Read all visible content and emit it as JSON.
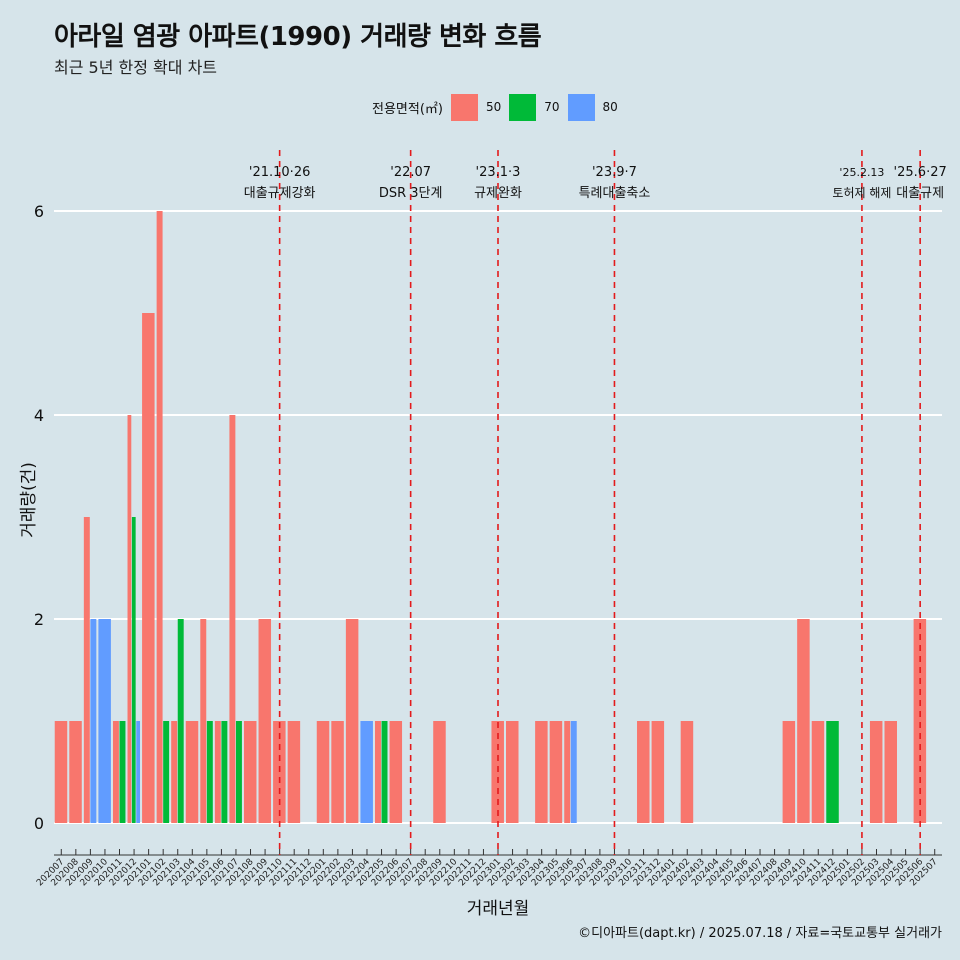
{
  "title": "아라일 염광 아파트(1990) 거래량 변화 흐름",
  "subtitle": "최근 5년 한정 확대 차트",
  "caption": "©디아파트(dapt.kr) / 2025.07.18 / 자료=국토교통부 실거래가",
  "legend": {
    "title": "전용면적(㎡)",
    "items": [
      {
        "label": "50",
        "color": "#f8766d"
      },
      {
        "label": "70",
        "color": "#00ba38"
      },
      {
        "label": "80",
        "color": "#619cff"
      }
    ]
  },
  "chart_data": {
    "type": "bar",
    "xlabel": "거래년월",
    "ylabel": "거래량(건)",
    "ylim": [
      0,
      6
    ],
    "yticks": [
      0,
      2,
      4,
      6
    ],
    "grid": "horizontal",
    "categories": [
      "202007",
      "202008",
      "202009",
      "202010",
      "202011",
      "202012",
      "202101",
      "202102",
      "202103",
      "202104",
      "202105",
      "202106",
      "202107",
      "202108",
      "202109",
      "202110",
      "202111",
      "202112",
      "202201",
      "202202",
      "202203",
      "202204",
      "202205",
      "202206",
      "202207",
      "202208",
      "202209",
      "202210",
      "202211",
      "202212",
      "202301",
      "202302",
      "202303",
      "202304",
      "202305",
      "202306",
      "202307",
      "202308",
      "202309",
      "202310",
      "202311",
      "202312",
      "202401",
      "202402",
      "202403",
      "202404",
      "202405",
      "202406",
      "202407",
      "202408",
      "202409",
      "202410",
      "202411",
      "202412",
      "202501",
      "202502",
      "202503",
      "202504",
      "202505",
      "202506",
      "202507"
    ],
    "series": [
      {
        "name": "50",
        "color": "#f8766d",
        "values": [
          1,
          1,
          3,
          0,
          1,
          4,
          5,
          6,
          1,
          1,
          2,
          1,
          4,
          1,
          2,
          1,
          1,
          0,
          1,
          1,
          2,
          0,
          1,
          1,
          0,
          0,
          1,
          0,
          0,
          0,
          1,
          1,
          0,
          1,
          1,
          1,
          0,
          0,
          0,
          0,
          1,
          1,
          0,
          1,
          0,
          0,
          0,
          0,
          0,
          0,
          1,
          2,
          1,
          0,
          0,
          0,
          1,
          1,
          0,
          2,
          0
        ]
      },
      {
        "name": "70",
        "color": "#00ba38",
        "values": [
          0,
          0,
          0,
          0,
          1,
          3,
          0,
          1,
          2,
          0,
          1,
          1,
          1,
          0,
          0,
          0,
          0,
          0,
          0,
          0,
          0,
          0,
          1,
          0,
          0,
          0,
          0,
          0,
          0,
          0,
          0,
          0,
          0,
          0,
          0,
          0,
          0,
          0,
          0,
          0,
          0,
          0,
          0,
          0,
          0,
          0,
          0,
          0,
          0,
          0,
          0,
          0,
          0,
          1,
          0,
          0,
          0,
          0,
          0,
          0,
          0
        ]
      },
      {
        "name": "80",
        "color": "#619cff",
        "values": [
          0,
          0,
          2,
          2,
          0,
          1,
          0,
          0,
          0,
          0,
          0,
          0,
          0,
          0,
          0,
          0,
          0,
          0,
          0,
          0,
          0,
          1,
          0,
          0,
          0,
          0,
          0,
          0,
          0,
          0,
          0,
          0,
          0,
          0,
          0,
          1,
          0,
          0,
          0,
          0,
          0,
          0,
          0,
          0,
          0,
          0,
          0,
          0,
          0,
          0,
          0,
          0,
          0,
          0,
          0,
          0,
          0,
          0,
          0,
          0,
          0
        ]
      }
    ],
    "annotations": [
      {
        "date": "'21.10·26",
        "label": "대출규제강화",
        "x": "202110"
      },
      {
        "date": "'22.07",
        "label": "DSR 3단계",
        "x": "202207"
      },
      {
        "date": "'23.1·3",
        "label": "규제완화",
        "x": "202301"
      },
      {
        "date": "'23.9·7",
        "label": "특례대출축소",
        "x": "202309"
      },
      {
        "date": "'25.2.13",
        "label": "토허제 해제",
        "x": "202502"
      },
      {
        "date": "'25.6·27",
        "label": "대출규제",
        "x": "202506"
      }
    ]
  }
}
